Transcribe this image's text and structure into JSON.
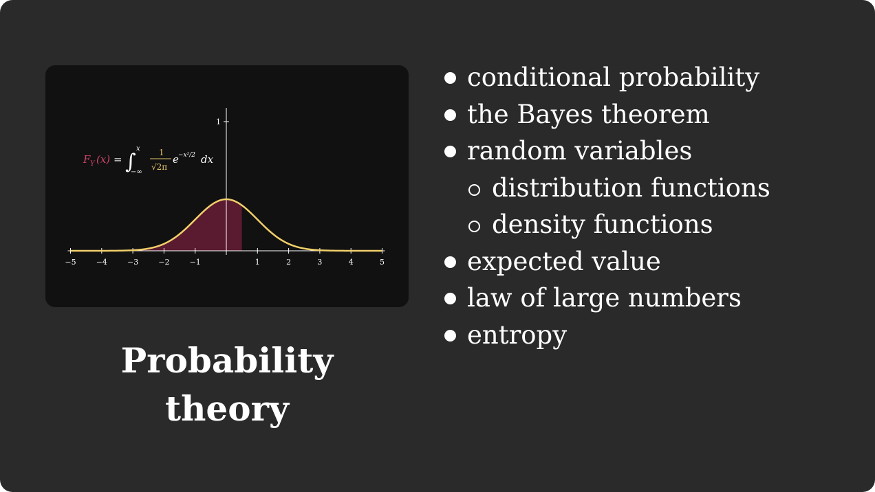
{
  "figure": {
    "formula": {
      "lhs_main": "F",
      "lhs_sub": "Y",
      "lhs_arg": "(x)",
      "equals": "=",
      "integral": "∫",
      "upper_limit": "x",
      "lower_limit": "−∞",
      "frac_num": "1",
      "frac_den": "√2π",
      "exp_base": "e",
      "exponent": "−x²/2",
      "dx": "dx"
    },
    "colors": {
      "curve": "#f2d06b",
      "fill": "#5a1a30",
      "label_red": "#d1456b",
      "axis": "#ffffff",
      "formula_yellow": "#e8c66a"
    }
  },
  "chart_data": {
    "type": "area",
    "function": "standard normal density",
    "x_ticks": [
      "−5",
      "−4",
      "−3",
      "−2",
      "−1",
      "1",
      "2",
      "3",
      "4",
      "5"
    ],
    "y_ticks": [
      "1"
    ],
    "xlim": [
      -5,
      5
    ],
    "ylim": [
      0,
      1
    ],
    "shaded_until_x": 0.5,
    "peak": 0.4
  },
  "title": {
    "line1": "Probability",
    "line2": "theory"
  },
  "topics": [
    {
      "text": "conditional probability",
      "level": 1
    },
    {
      "text": "the Bayes theorem",
      "level": 1
    },
    {
      "text": "random variables",
      "level": 1
    },
    {
      "text": "distribution functions",
      "level": 2
    },
    {
      "text": "density functions",
      "level": 2
    },
    {
      "text": "expected value",
      "level": 1
    },
    {
      "text": "law of large numbers",
      "level": 1
    },
    {
      "text": "entropy",
      "level": 1
    }
  ]
}
